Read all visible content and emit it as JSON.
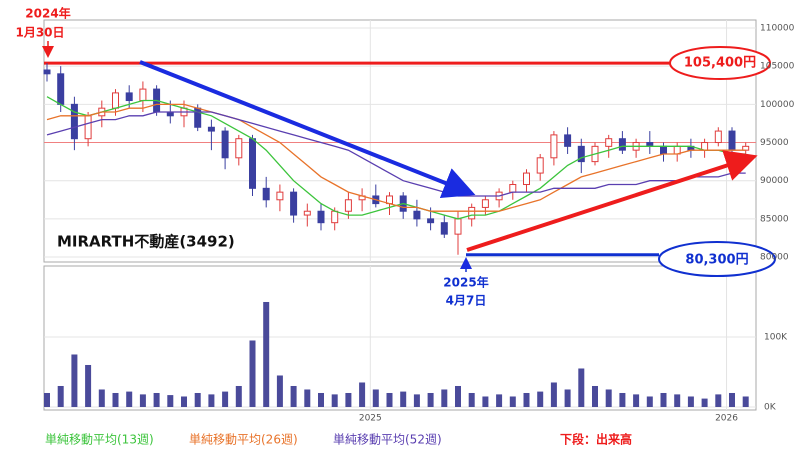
{
  "chart_data": {
    "type": "candlestick",
    "title": "MIRARTH不動産(3492)",
    "categories": [
      null,
      null,
      null,
      null,
      null,
      null,
      null,
      null,
      null,
      null,
      null,
      null,
      null,
      null,
      null,
      null,
      null,
      null,
      null,
      null,
      null,
      null,
      null,
      null,
      null,
      null,
      null,
      null,
      null,
      null,
      null,
      null,
      null,
      null,
      null,
      null,
      null,
      null,
      null,
      null,
      null,
      null,
      null,
      null,
      null,
      null,
      null,
      null,
      null,
      null,
      null,
      null
    ],
    "xticks": [
      {
        "value": 23.6,
        "label": "2025"
      },
      {
        "value": 49.6,
        "label": "2026"
      }
    ],
    "ylim": [
      79350,
      111050
    ],
    "yticks": [
      80000,
      85000,
      90000,
      95000,
      100000,
      105000,
      110000
    ],
    "grid": true,
    "up_color": "#e03c3c",
    "down_color": "#3a3fa0",
    "ohlc": {
      "open": [
        104500,
        104000,
        100000,
        95500,
        98500,
        99500,
        101500,
        100500,
        102000,
        99000,
        98500,
        99500,
        97000,
        96500,
        93000,
        95500,
        89000,
        87500,
        88500,
        85500,
        86000,
        84500,
        86000,
        87500,
        88000,
        87000,
        88000,
        86000,
        85000,
        84500,
        83000,
        85000,
        86500,
        87500,
        88500,
        89500,
        91000,
        93000,
        96000,
        94500,
        92500,
        94500,
        95500,
        94000,
        95000,
        94500,
        93500,
        94500,
        94000,
        95000,
        96500,
        94000
      ],
      "high": [
        105400,
        105000,
        101000,
        99000,
        100500,
        102000,
        102500,
        103000,
        102500,
        100500,
        100500,
        100000,
        98000,
        97000,
        96000,
        96000,
        90500,
        89500,
        89000,
        87000,
        87000,
        86500,
        88500,
        89000,
        89500,
        88500,
        88500,
        87500,
        86500,
        85500,
        86000,
        87000,
        88000,
        89000,
        90000,
        91500,
        93500,
        96500,
        97000,
        95500,
        95000,
        96000,
        96500,
        95500,
        96500,
        95000,
        95000,
        95500,
        95500,
        97000,
        97000,
        95000
      ],
      "low": [
        103000,
        99000,
        94000,
        94500,
        97000,
        98500,
        99500,
        99000,
        98500,
        97500,
        97000,
        96500,
        94000,
        91500,
        92000,
        88000,
        86500,
        86000,
        84500,
        84000,
        83500,
        83500,
        85000,
        86000,
        86500,
        85500,
        85000,
        84000,
        83500,
        82500,
        80300,
        84000,
        85500,
        86500,
        87500,
        88500,
        90000,
        92000,
        93500,
        91000,
        92000,
        93000,
        93500,
        93000,
        93500,
        92500,
        92500,
        93000,
        93000,
        94500,
        93500,
        93000
      ],
      "close": [
        104000,
        100000,
        95500,
        98500,
        99500,
        101500,
        100500,
        102000,
        99000,
        98500,
        99500,
        97000,
        96500,
        93000,
        95500,
        89000,
        87500,
        88500,
        85500,
        86000,
        84500,
        86000,
        87500,
        88000,
        87000,
        88000,
        86000,
        85000,
        84500,
        83000,
        85000,
        86500,
        87500,
        88500,
        89500,
        91000,
        93000,
        96000,
        94500,
        92500,
        94500,
        95500,
        94000,
        95000,
        94500,
        93500,
        94500,
        94000,
        95000,
        96500,
        94000,
        94500
      ]
    },
    "series": [
      {
        "name": "単純移動平均(13週)",
        "color": "#3cc43c",
        "values": [
          101000,
          100000,
          99000,
          98500,
          99000,
          99500,
          100000,
          100500,
          100500,
          100000,
          99500,
          99000,
          98500,
          97500,
          96500,
          95500,
          94000,
          92000,
          90000,
          88500,
          87000,
          86000,
          85500,
          85500,
          86000,
          86500,
          87000,
          86500,
          86000,
          85500,
          85000,
          85500,
          85500,
          86000,
          87000,
          88000,
          89000,
          90500,
          92000,
          93000,
          93500,
          94000,
          94500,
          94500,
          94500,
          94500,
          94500,
          94500,
          94000,
          94000,
          93500,
          93500
        ]
      },
      {
        "name": "単純移動平均(26週)",
        "color": "#e8732a",
        "values": [
          98000,
          98500,
          98500,
          98500,
          99000,
          99000,
          99500,
          99500,
          100000,
          100000,
          100000,
          99500,
          99000,
          98500,
          98000,
          97000,
          96000,
          95000,
          93500,
          92000,
          90500,
          89500,
          88500,
          88000,
          87500,
          87000,
          86500,
          86500,
          86000,
          86000,
          86000,
          86000,
          86000,
          86000,
          86500,
          87000,
          87500,
          88500,
          89500,
          90500,
          91000,
          91500,
          92000,
          92500,
          93000,
          93500,
          93500,
          94000,
          94000,
          94000,
          94000,
          94000
        ]
      },
      {
        "name": "単純移動平均(52週)",
        "color": "#5a3fb0",
        "values": [
          96000,
          96500,
          97000,
          97500,
          98000,
          98000,
          98500,
          98500,
          99000,
          99000,
          99000,
          99000,
          99000,
          98500,
          98000,
          97500,
          97000,
          96500,
          96000,
          95500,
          95000,
          94500,
          94000,
          93000,
          92000,
          91000,
          90000,
          89500,
          89000,
          88500,
          88000,
          88000,
          88000,
          88000,
          88500,
          88500,
          88500,
          89000,
          89000,
          89000,
          89000,
          89500,
          89500,
          89500,
          90000,
          90000,
          90000,
          90500,
          90500,
          90500,
          91000,
          91000
        ]
      }
    ],
    "volume": {
      "color": "#4a4a9a",
      "ylim": [
        -4300,
        201400
      ],
      "yticks": [
        {
          "value": 0,
          "label": "0K"
        },
        {
          "value": 100000,
          "label": "100K"
        }
      ],
      "values": [
        20000,
        30000,
        75000,
        60000,
        25000,
        20000,
        22000,
        18000,
        20000,
        17000,
        15000,
        20000,
        18000,
        22000,
        30000,
        95000,
        150000,
        45000,
        30000,
        25000,
        20000,
        18000,
        20000,
        35000,
        25000,
        20000,
        22000,
        18000,
        20000,
        25000,
        30000,
        20000,
        15000,
        18000,
        15000,
        20000,
        22000,
        35000,
        25000,
        55000,
        30000,
        25000,
        20000,
        18000,
        15000,
        20000,
        18000,
        15000,
        12000,
        18000,
        20000,
        15000
      ]
    },
    "reference_lines": [
      {
        "value": 105400,
        "color": "#ee1c1c",
        "label": "105,400円"
      },
      {
        "value": 80300,
        "color": "#1030d0",
        "label": "80,300円"
      },
      {
        "value": 95000,
        "color": "#f08080"
      }
    ],
    "start_label": [
      "2024年",
      "1月30日"
    ],
    "low_label": [
      "2025年",
      "4月7日"
    ],
    "legend_note": "下段：出来高"
  }
}
